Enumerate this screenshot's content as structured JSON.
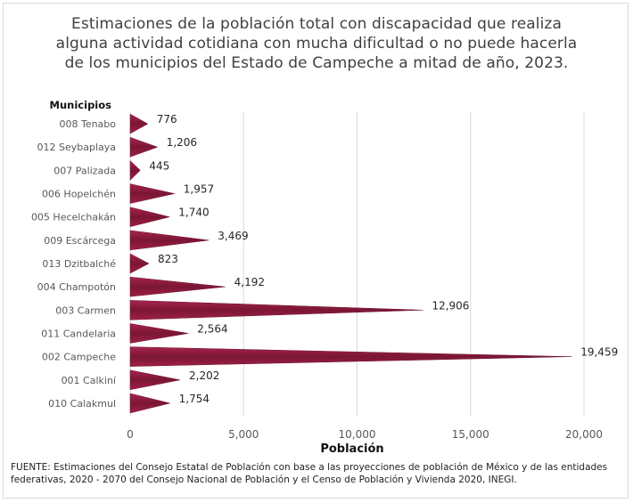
{
  "chart_data": {
    "type": "bar",
    "orientation": "horizontal",
    "title": "Estimaciones de la población total con discapacidad que realiza alguna actividad cotidiana con mucha dificultad o no puede hacerla de los municipios del Estado de Campeche a mitad de año, 2023.",
    "ylabel": "Municipios",
    "xlabel": "Población",
    "xlim": [
      0,
      20000
    ],
    "xticks": [
      0,
      5000,
      10000,
      15000,
      20000
    ],
    "xtick_labels": [
      "0",
      "5,000",
      "10,000",
      "15,000",
      "20,000"
    ],
    "grid": true,
    "bar_color": "#8b1a3c",
    "categories": [
      "008 Tenabo",
      "012 Seybaplaya",
      "007 Palizada",
      "006 Hopelchén",
      "005 Hecelchakán",
      "009 Escárcega",
      "013 Dzitbalché",
      "004 Champotón",
      "003 Carmen",
      "011 Candelaria",
      "002 Campeche",
      "001 Calkiní",
      "010 Calakmul"
    ],
    "values": [
      776,
      1206,
      445,
      1957,
      1740,
      3469,
      823,
      4192,
      12906,
      2564,
      19459,
      2202,
      1754
    ],
    "value_labels": [
      "776",
      "1,206",
      "445",
      "1,957",
      "1,740",
      "3,469",
      "823",
      "4,192",
      "12,906",
      "2,564",
      "19,459",
      "2,202",
      "1,754"
    ]
  },
  "source_note": "FUENTE: Estimaciones del Consejo Estatal de Población con base a las proyecciones de población de México y de las entidades federativas, 2020 - 2070 del Consejo Nacional de Población y el Censo de Población y Vivienda 2020, INEGI."
}
